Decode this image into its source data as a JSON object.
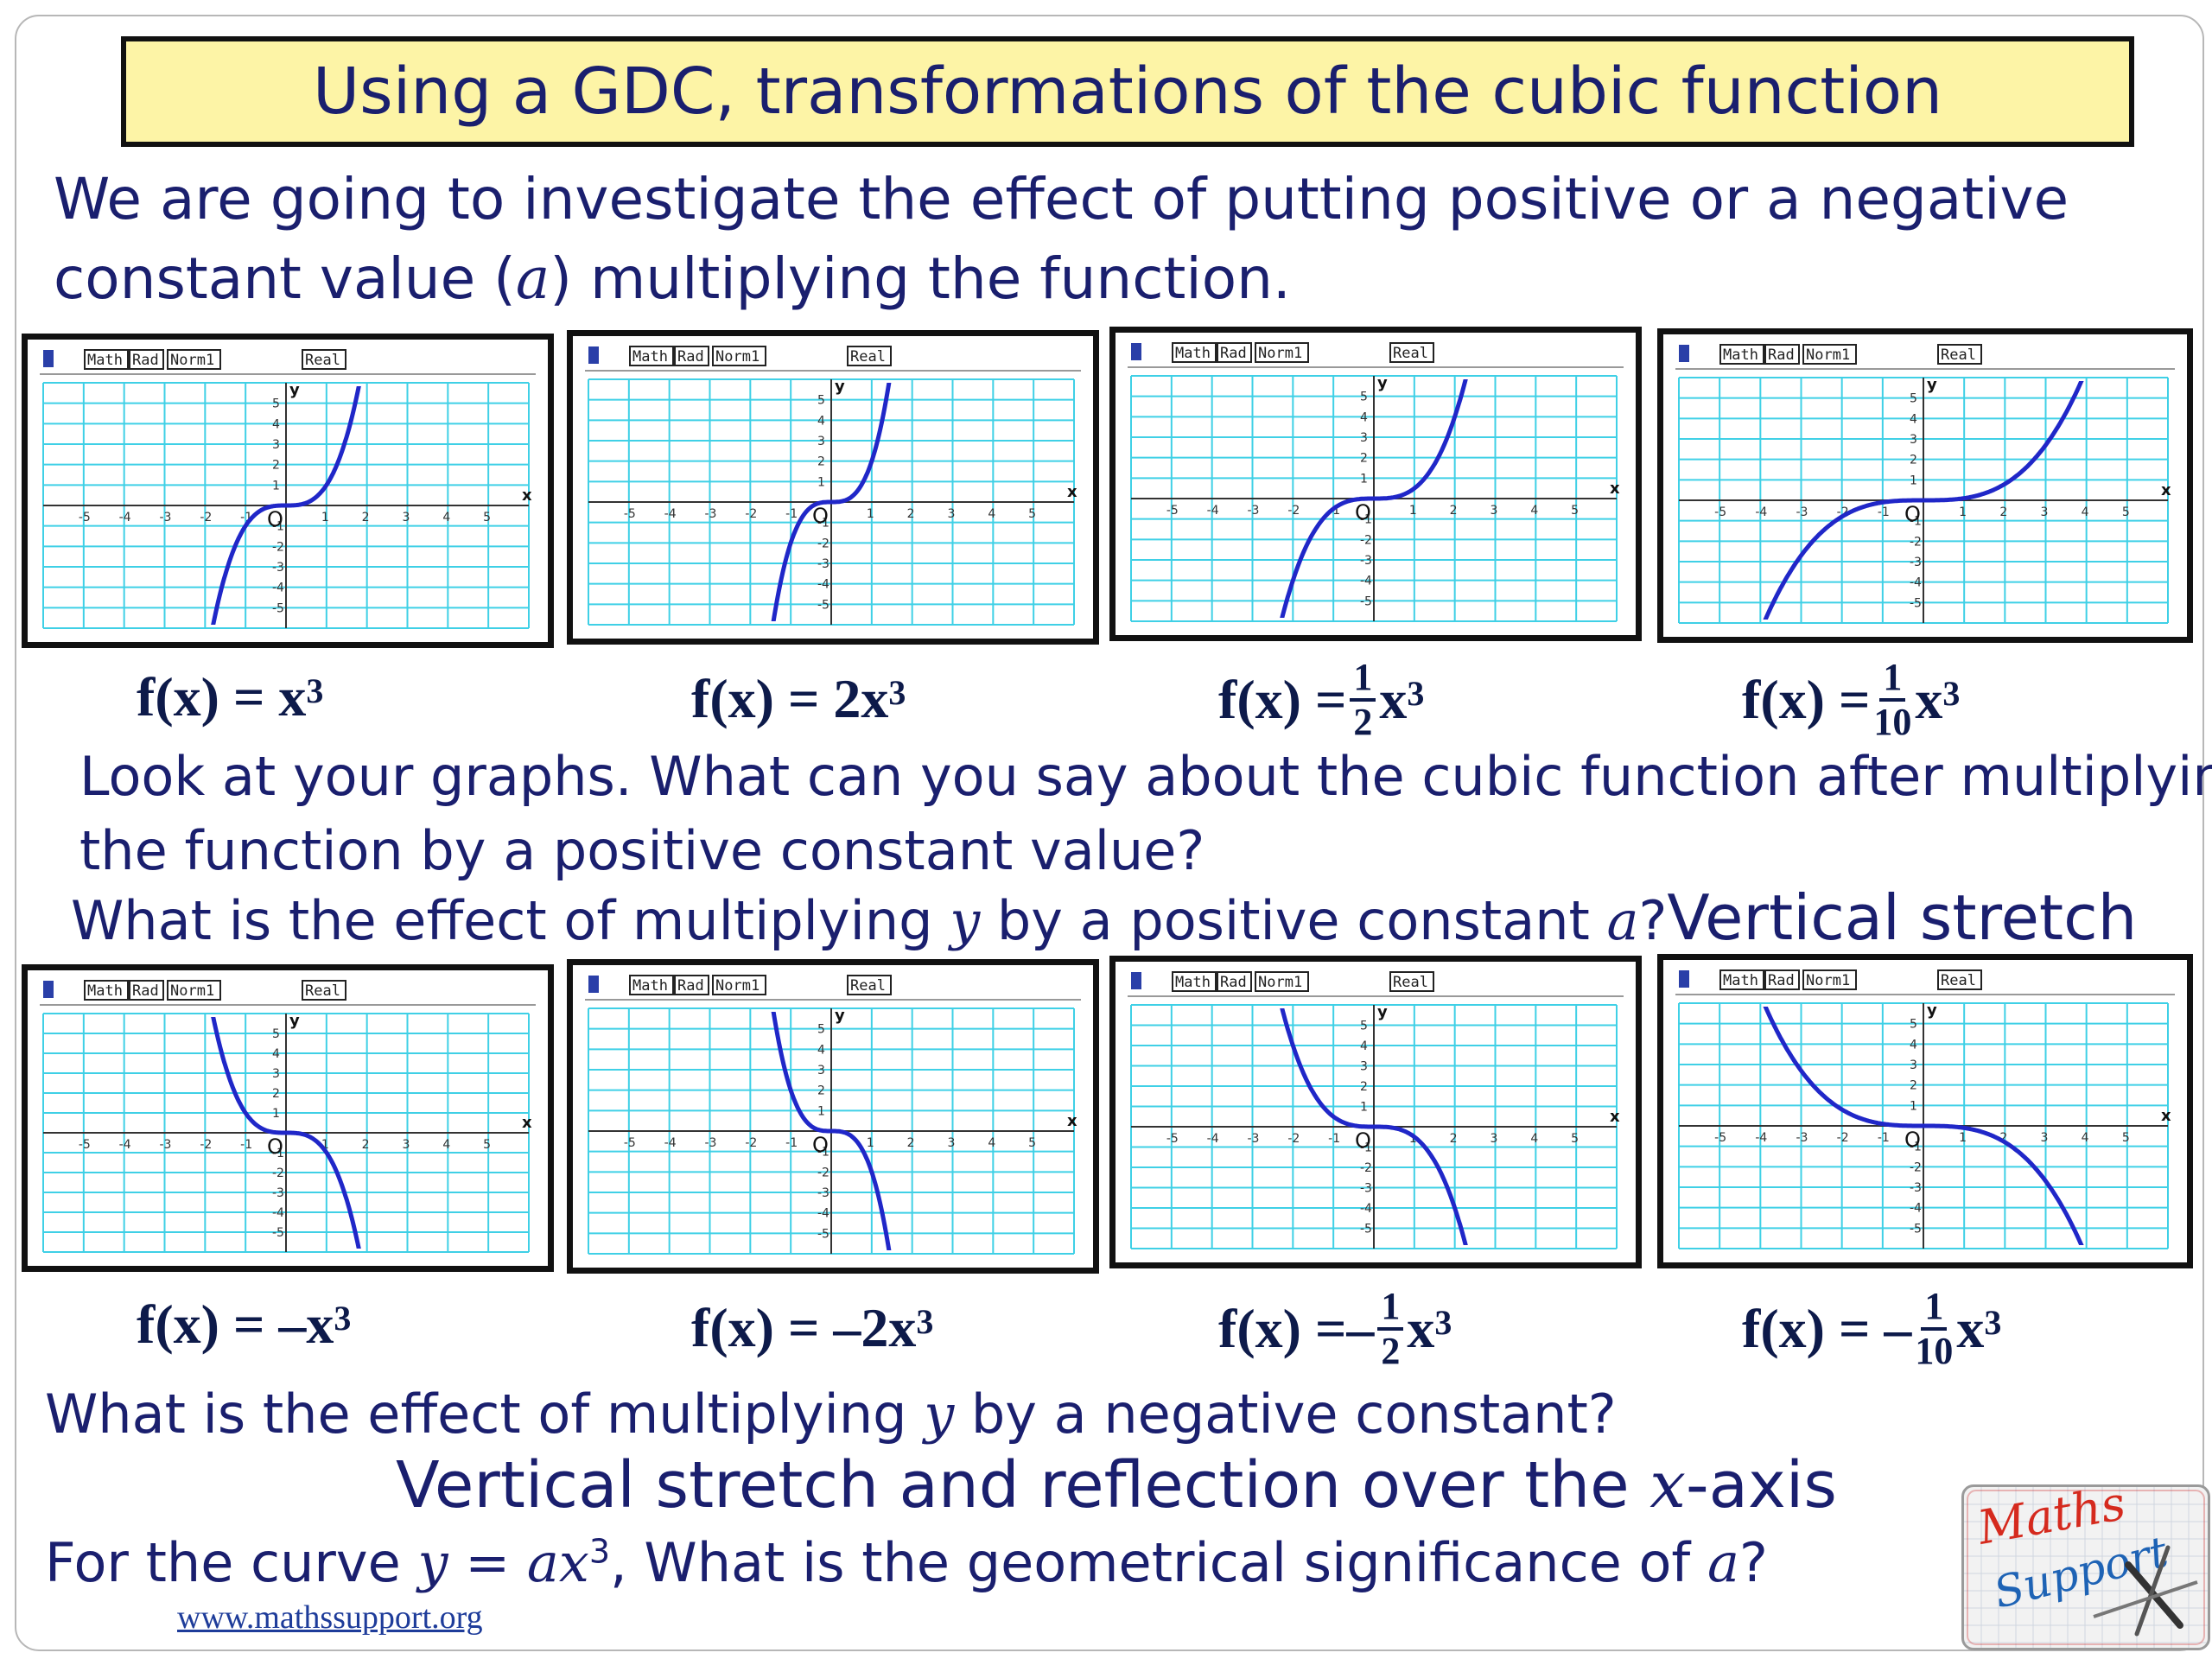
{
  "title": "Using a GDC, transformations of the cubic function",
  "intro": {
    "line1": "We are going to investigate the effect of putting positive or a negative",
    "line2_a": "constant value (",
    "line2_var": "a",
    "line2_b": ") multiplying the function."
  },
  "calc_status": {
    "math": "Math",
    "rad": "Rad",
    "norm": "Norm1",
    "real": "Real",
    "axis_x": "x",
    "axis_y": "y",
    "origin": "O",
    "x_ticks": [
      "-5",
      "-4",
      "-3",
      "-2",
      "-1",
      "1",
      "2",
      "3",
      "4",
      "5"
    ],
    "y_ticks": [
      "5",
      "4",
      "3",
      "2",
      "1",
      "-1",
      "-2",
      "-3",
      "-4",
      "-5"
    ]
  },
  "positive_graphs": [
    {
      "a": 1,
      "label": "f(x) = x",
      "exp": "3"
    },
    {
      "a": 2,
      "label": "f(x) = 2x",
      "exp": "3"
    },
    {
      "a": 0.5,
      "label_pre": "f(x) = ",
      "num": "1",
      "den": "2",
      "label_post": "x",
      "exp": "3"
    },
    {
      "a": 0.1,
      "label_pre": "f(x) = ",
      "num": "1",
      "den": "10",
      "label_post": "x",
      "exp": "3"
    }
  ],
  "negative_graphs": [
    {
      "a": -1,
      "label": "f(x) = –x",
      "exp": "3"
    },
    {
      "a": -2,
      "label": "f(x) = –2x",
      "exp": "3"
    },
    {
      "a": -0.5,
      "label_pre": "f(x) =– ",
      "num": "1",
      "den": "2",
      "label_post": "x",
      "exp": "3"
    },
    {
      "a": -0.1,
      "label_pre": "f(x) = – ",
      "num": "1",
      "den": "10",
      "label_post": "x",
      "exp": "3"
    }
  ],
  "question1": {
    "line1": "Look at your graphs. What can you say about the cubic function after multiplying",
    "line2": "the function by a positive constant value?"
  },
  "question2": {
    "pre": "What is the effect of multiplying ",
    "var_y": "y",
    "mid": " by a positive constant ",
    "var_a": "a",
    "post": "?",
    "answer": "Vertical stretch"
  },
  "question3": {
    "pre": "What is the effect of multiplying ",
    "var_y": "y",
    "post": " by a negative constant?"
  },
  "answer3": {
    "pre": "Vertical stretch and reflection over the ",
    "var_x": "x",
    "post": "-axis"
  },
  "question4": {
    "pre": "For the curve ",
    "eq_y": "y",
    "eq_mid": " = ",
    "eq_ax": "ax",
    "eq_exp": "3",
    "mid": ", What is the geometrical significance of ",
    "var_a": "a",
    "post": "?"
  },
  "footer_url": "www.mathssupport.org",
  "logo_text": {
    "line1": "Maths",
    "line2": "Support"
  },
  "colors": {
    "grid": "#3fd0e6",
    "curve": "#2027c8",
    "title_bg": "#fdf4a6",
    "text": "#1a1f6e"
  }
}
